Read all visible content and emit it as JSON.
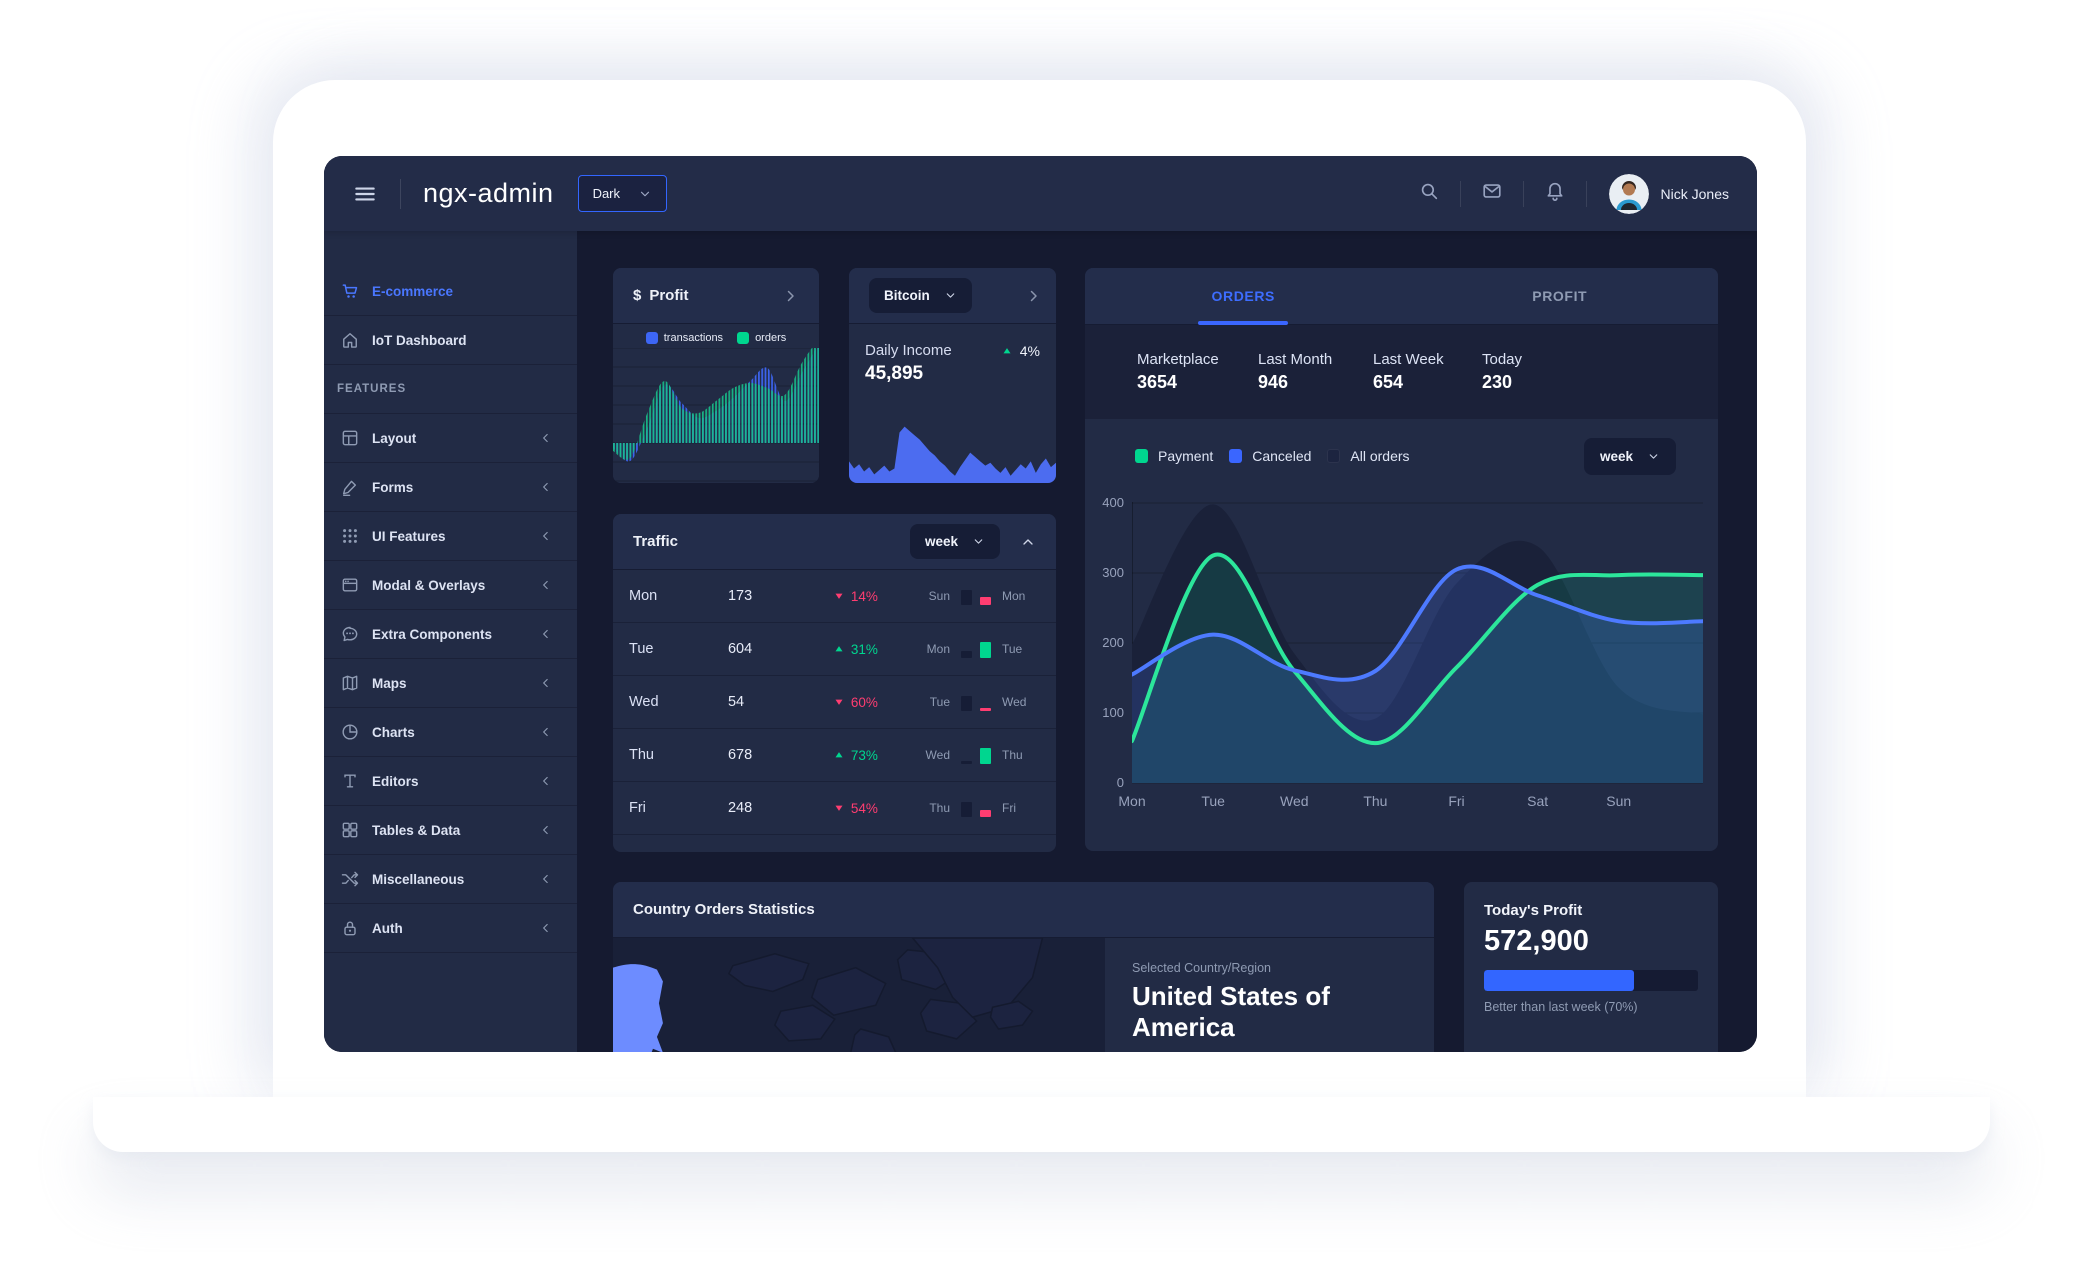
{
  "header": {
    "title": "ngx-admin",
    "theme_select": {
      "value": "Dark"
    },
    "right_icons": [
      "search",
      "email",
      "bell"
    ],
    "user": {
      "name": "Nick Jones"
    }
  },
  "sidebar": {
    "items": [
      {
        "label": "E-commerce",
        "icon": "cart",
        "active": true,
        "expandable": false
      },
      {
        "label": "IoT Dashboard",
        "icon": "home",
        "active": false,
        "expandable": false
      },
      {
        "type": "section",
        "label": "FEATURES"
      },
      {
        "label": "Layout",
        "icon": "layout",
        "expandable": true
      },
      {
        "label": "Forms",
        "icon": "edit",
        "expandable": true
      },
      {
        "label": "UI Features",
        "icon": "keypad",
        "expandable": true
      },
      {
        "label": "Modal & Overlays",
        "icon": "browser",
        "expandable": true
      },
      {
        "label": "Extra Components",
        "icon": "chat",
        "expandable": true
      },
      {
        "label": "Maps",
        "icon": "map",
        "expandable": true
      },
      {
        "label": "Charts",
        "icon": "pie",
        "expandable": true
      },
      {
        "label": "Editors",
        "icon": "text",
        "expandable": true
      },
      {
        "label": "Tables & Data",
        "icon": "grid",
        "expandable": true
      },
      {
        "label": "Miscellaneous",
        "icon": "shuffle",
        "expandable": true
      },
      {
        "label": "Auth",
        "icon": "lock",
        "expandable": true
      }
    ]
  },
  "profit_card": {
    "currency_symbol": "$",
    "title": "Profit",
    "legend": [
      {
        "label": "transactions",
        "color": "#3d66f5"
      },
      {
        "label": "orders",
        "color": "#00d68f"
      }
    ],
    "chart_data": {
      "type": "area",
      "baseline": 95,
      "series": [
        {
          "name": "transactions",
          "color": "#3d66f5",
          "offsets": [
            -5,
            -18,
            15,
            58,
            40,
            25,
            32,
            45,
            62,
            75,
            42,
            70,
            100
          ]
        },
        {
          "name": "orders",
          "color": "#17c08a",
          "offsets": [
            -8,
            -15,
            30,
            62,
            35,
            30,
            42,
            55,
            60,
            55,
            48,
            80,
            105
          ]
        }
      ]
    }
  },
  "bitcoin_card": {
    "selector_value": "Bitcoin",
    "label": "Daily Income",
    "value": "45,895",
    "delta": "4%",
    "trend": "up",
    "chart_data": {
      "type": "area",
      "color": "#4c6cf0",
      "heights": [
        30,
        20,
        26,
        16,
        22,
        12,
        18,
        24,
        16,
        20,
        70,
        78,
        72,
        66,
        60,
        52,
        44,
        38,
        30,
        24,
        16,
        10,
        22,
        32,
        42,
        36,
        30,
        24,
        28,
        20,
        14,
        22,
        10,
        18,
        26,
        20,
        30,
        14,
        26,
        34,
        22,
        28
      ]
    }
  },
  "orders_card": {
    "tabs": [
      {
        "label": "ORDERS",
        "active": true
      },
      {
        "label": "PROFIT",
        "active": false
      }
    ],
    "stats": [
      {
        "label": "Marketplace",
        "value": "3654"
      },
      {
        "label": "Last Month",
        "value": "946"
      },
      {
        "label": "Last Week",
        "value": "654"
      },
      {
        "label": "Today",
        "value": "230"
      }
    ],
    "legend": [
      {
        "label": "Payment",
        "color": "#00d68f"
      },
      {
        "label": "Canceled",
        "color": "#3a66ff"
      },
      {
        "label": "All orders",
        "color": "#1c2440"
      }
    ],
    "period": "week",
    "chart_data": {
      "type": "line",
      "x": [
        "Mon",
        "Tue",
        "Wed",
        "Thu",
        "Fri",
        "Sat",
        "Sun"
      ],
      "ylim": [
        0,
        400
      ],
      "yticks": [
        400,
        300,
        200,
        100,
        0
      ],
      "grid": true,
      "series": [
        {
          "name": "All orders",
          "kind": "area",
          "color": "#26304d",
          "values": [
            198,
            398,
            185,
            92,
            285,
            338,
            136
          ],
          "edge_value": 98
        },
        {
          "name": "Payment",
          "kind": "line",
          "color": "#2ce69b",
          "fill": "rgba(0,214,143,0.14)",
          "values": [
            60,
            325,
            160,
            57,
            165,
            283,
            297
          ],
          "edge_value": 297
        },
        {
          "name": "Canceled",
          "kind": "line",
          "color": "#4d7aff",
          "fill": "rgba(77,122,255,0.20)",
          "values": [
            155,
            212,
            161,
            160,
            305,
            268,
            231
          ],
          "edge_value": 231
        }
      ]
    }
  },
  "traffic_card": {
    "title": "Traffic",
    "period": "week",
    "rows": [
      {
        "day": "Mon",
        "value": "173",
        "delta": "14%",
        "trend": "down",
        "prev_day": "Sun",
        "prev_bar": 15,
        "cur_bar": 8
      },
      {
        "day": "Tue",
        "value": "604",
        "delta": "31%",
        "trend": "up",
        "prev_day": "Mon",
        "prev_bar": 7,
        "cur_bar": 16
      },
      {
        "day": "Wed",
        "value": "54",
        "delta": "60%",
        "trend": "down",
        "prev_day": "Tue",
        "prev_bar": 15,
        "cur_bar": 3
      },
      {
        "day": "Thu",
        "value": "678",
        "delta": "73%",
        "trend": "up",
        "prev_day": "Wed",
        "prev_bar": 3,
        "cur_bar": 16
      },
      {
        "day": "Fri",
        "value": "248",
        "delta": "54%",
        "trend": "down",
        "prev_day": "Thu",
        "prev_bar": 15,
        "cur_bar": 7
      }
    ]
  },
  "country_card": {
    "title": "Country Orders Statistics",
    "selected_label": "Selected Country/Region",
    "selected_value": "United States of America",
    "highlight_color": "#6d8cff"
  },
  "today_card": {
    "title": "Today's Profit",
    "value": "572,900",
    "progress_percent": 70,
    "caption": "Better than last week (70%)"
  },
  "colors": {
    "primary": "#3366ff",
    "success": "#00d68f",
    "danger": "#ff3d71",
    "bg_main": "#151a30",
    "bg_card": "#222b45",
    "bg_card_dark": "#1a2138",
    "text_muted": "#8f9bb3"
  }
}
